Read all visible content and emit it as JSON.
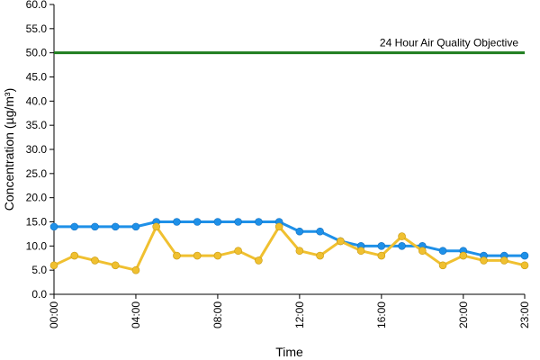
{
  "chart_data": {
    "type": "line",
    "title": "",
    "xlabel": "Time",
    "ylabel": "Concentration (µg/m³)",
    "ylim": [
      0,
      60
    ],
    "y_ticks": [
      "0.0",
      "5.0",
      "10.0",
      "15.0",
      "20.0",
      "25.0",
      "30.0",
      "35.0",
      "40.0",
      "45.0",
      "50.0",
      "55.0",
      "60.0"
    ],
    "x_ticks": [
      "00:00",
      "04:00",
      "08:00",
      "12:00",
      "16:00",
      "20:00",
      "23:00"
    ],
    "x_tick_hours": [
      0,
      4,
      8,
      12,
      16,
      20,
      23
    ],
    "x": [
      "00:00",
      "01:00",
      "02:00",
      "03:00",
      "04:00",
      "05:00",
      "06:00",
      "07:00",
      "08:00",
      "09:00",
      "10:00",
      "11:00",
      "12:00",
      "13:00",
      "14:00",
      "15:00",
      "16:00",
      "17:00",
      "18:00",
      "19:00",
      "20:00",
      "21:00",
      "22:00",
      "23:00"
    ],
    "series": [
      {
        "color": "#1E90E8",
        "values": [
          14,
          14,
          14,
          14,
          14,
          15,
          15,
          15,
          15,
          15,
          15,
          15,
          13,
          13,
          11,
          10,
          10,
          10,
          10,
          9,
          9,
          8,
          8,
          8
        ]
      },
      {
        "color": "#F0C030",
        "values": [
          6,
          8,
          7,
          6,
          5,
          14,
          8,
          8,
          8,
          9,
          7,
          14,
          9,
          8,
          11,
          9,
          8,
          12,
          9,
          6,
          8,
          7,
          7,
          6
        ]
      }
    ],
    "reference_line": {
      "value": 50,
      "label": "24 Hour Air Quality Objective",
      "color": "#1E7D1E"
    },
    "grid": false,
    "legend": "none"
  }
}
